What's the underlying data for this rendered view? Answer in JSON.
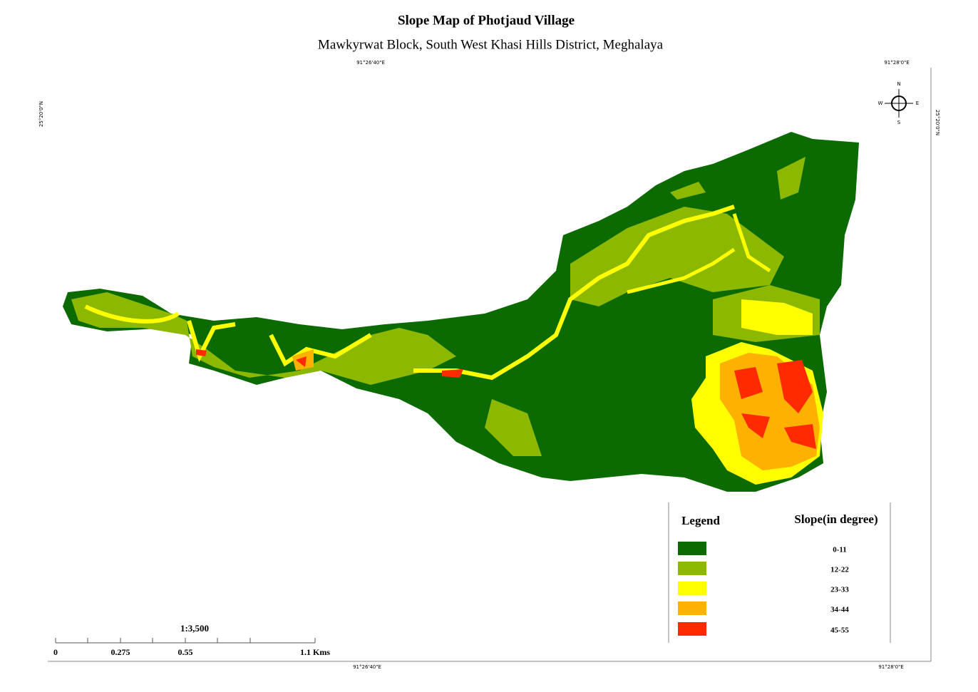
{
  "map": {
    "title": "Slope Map of  Photjaud Village",
    "subtitle": "Mawkyrwat  Block, South West Khasi Hills District, Meghalaya",
    "coords": {
      "top_left": "91°26'40\"E",
      "top_right": "91°28'0\"E",
      "bottom_left": "91°26'40\"E",
      "bottom_right": "91°28'0\"E",
      "left": "25°20'0\"N",
      "right": "25°20'0\"N"
    },
    "compass": {
      "n": "N",
      "s": "S",
      "e": "E",
      "w": "W"
    },
    "legend": {
      "title": "Legend",
      "heading": "Slope(in degree)",
      "classes": [
        {
          "label": "0-11",
          "color": "#0b6a00"
        },
        {
          "label": "12-22",
          "color": "#8cb800"
        },
        {
          "label": "23-33",
          "color": "#ffff00"
        },
        {
          "label": "34-44",
          "color": "#ffb100"
        },
        {
          "label": "45-55",
          "color": "#ff2a00"
        }
      ]
    },
    "scale": {
      "ratio": "1:3,500",
      "labels": [
        "0",
        "0.275",
        "0.55",
        "1.1 Kms"
      ]
    }
  }
}
